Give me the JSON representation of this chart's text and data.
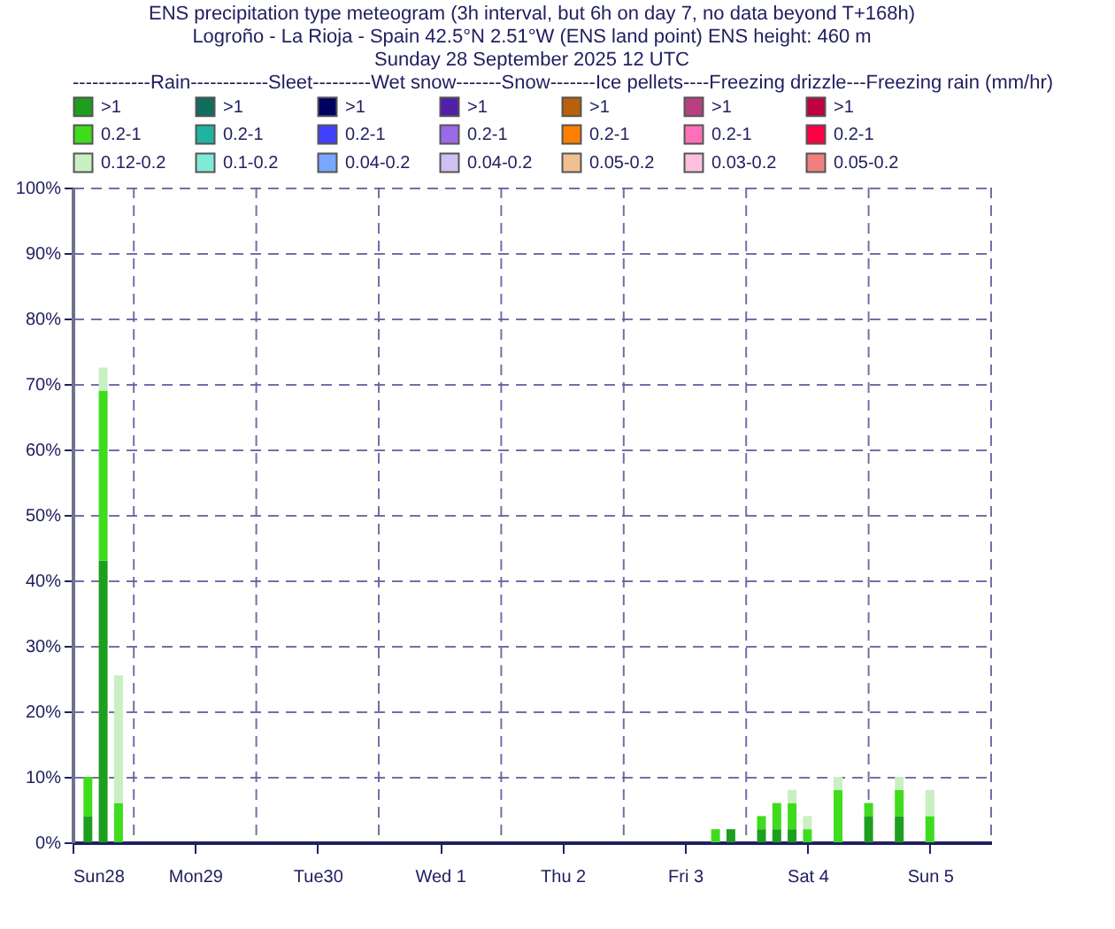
{
  "chart_data": {
    "type": "bar",
    "stacked": true,
    "title": "ENS precipitation type meteogram (3h interval, but 6h on day 7, no data beyond T+168h)",
    "subtitle": "Logroño - La Rioja - Spain 42.5°N 2.51°W (ENS land point) ENS height: 460 m\nSunday 28 September 2025 12 UTC",
    "legend_title": "------------Rain------------Sleet---------Wet snow-------Snow-------Ice pellets----Freezing drizzle---Freezing rain (mm/hr)",
    "legend": "top",
    "grid": true,
    "x": [
      "2025-09-28T15:00",
      "2025-09-28T18:00",
      "2025-09-28T21:00",
      "2025-10-03T18:00",
      "2025-10-03T21:00",
      "2025-10-04T03:00",
      "2025-10-04T06:00",
      "2025-10-04T09:00",
      "2025-10-04T12:00",
      "2025-10-04T18:00",
      "2025-10-05T00:00",
      "2025-10-05T06:00",
      "2025-10-05T12:00"
    ],
    "xlim": [
      "2025-09-28T12:00",
      "2025-10-06T00:00"
    ],
    "xticks": [
      {
        "value": "2025-09-28T12:00",
        "label": "Sun28"
      },
      {
        "value": "2025-09-29T00:00",
        "label": null
      },
      {
        "value": "2025-09-29T12:00",
        "label": "Mon29"
      },
      {
        "value": "2025-09-30T00:00",
        "label": null
      },
      {
        "value": "2025-09-30T12:00",
        "label": "Tue30"
      },
      {
        "value": "2025-10-01T00:00",
        "label": null
      },
      {
        "value": "2025-10-01T12:00",
        "label": "Wed 1"
      },
      {
        "value": "2025-10-02T00:00",
        "label": null
      },
      {
        "value": "2025-10-02T12:00",
        "label": "Thu 2"
      },
      {
        "value": "2025-10-03T00:00",
        "label": null
      },
      {
        "value": "2025-10-03T12:00",
        "label": "Fri 3"
      },
      {
        "value": "2025-10-04T00:00",
        "label": null
      },
      {
        "value": "2025-10-04T12:00",
        "label": "Sat 4"
      },
      {
        "value": "2025-10-05T00:00",
        "label": null
      },
      {
        "value": "2025-10-05T12:00",
        "label": "Sun 5"
      },
      {
        "value": "2025-10-06T00:00",
        "label": null
      }
    ],
    "ylim": [
      0,
      100
    ],
    "yticks": [
      {
        "value": 0,
        "label": "0%"
      },
      {
        "value": 10,
        "label": "10%"
      },
      {
        "value": 20,
        "label": "20%"
      },
      {
        "value": 30,
        "label": "30%"
      },
      {
        "value": 40,
        "label": "40%"
      },
      {
        "value": 50,
        "label": "50%"
      },
      {
        "value": 60,
        "label": "60%"
      },
      {
        "value": 70,
        "label": "70%"
      },
      {
        "value": 80,
        "label": "80%"
      },
      {
        "value": 90,
        "label": "90%"
      },
      {
        "value": 100,
        "label": "100%"
      }
    ],
    "series": [
      {
        "name": ">1",
        "color": "#1e9e1e",
        "values": [
          4,
          43,
          null,
          null,
          2,
          2,
          2,
          2,
          null,
          null,
          4,
          4,
          null
        ]
      },
      {
        "name": "0.2-1",
        "color": "#3fdc1e",
        "values": [
          6,
          26,
          6,
          2,
          null,
          2,
          4,
          4,
          2,
          8,
          2,
          4,
          4
        ]
      },
      {
        "name": "0.12-0.2",
        "color": "#c8f0c0",
        "values": [
          null,
          3.5,
          19.5,
          null,
          null,
          null,
          null,
          2,
          2,
          2,
          null,
          2,
          4
        ]
      },
      {
        "name": ">1",
        "color": "#0f6e5e",
        "values": [
          null,
          null,
          null,
          null,
          null,
          null,
          null,
          null,
          null,
          null,
          null,
          null,
          null
        ]
      },
      {
        "name": "0.2-1",
        "color": "#20b4a0",
        "values": [
          null,
          null,
          null,
          null,
          null,
          null,
          null,
          null,
          null,
          null,
          null,
          null,
          null
        ]
      },
      {
        "name": "0.1-0.2",
        "color": "#80ead8",
        "values": [
          null,
          null,
          null,
          null,
          null,
          null,
          null,
          null,
          null,
          null,
          null,
          null,
          null
        ]
      },
      {
        "name": ">1",
        "color": "#000060",
        "values": [
          null,
          null,
          null,
          null,
          null,
          null,
          null,
          null,
          null,
          null,
          null,
          null,
          null
        ]
      },
      {
        "name": "0.2-1",
        "color": "#4040ff",
        "values": [
          null,
          null,
          null,
          null,
          null,
          null,
          null,
          null,
          null,
          null,
          null,
          null,
          null
        ]
      },
      {
        "name": "0.04-0.2",
        "color": "#78a8ff",
        "values": [
          null,
          null,
          null,
          null,
          null,
          null,
          null,
          null,
          null,
          null,
          null,
          null,
          null
        ]
      },
      {
        "name": ">1",
        "color": "#5020a8",
        "values": [
          null,
          null,
          null,
          null,
          null,
          null,
          null,
          null,
          null,
          null,
          null,
          null,
          null
        ]
      },
      {
        "name": "0.2-1",
        "color": "#9a6ae8",
        "values": [
          null,
          null,
          null,
          null,
          null,
          null,
          null,
          null,
          null,
          null,
          null,
          null,
          null
        ]
      },
      {
        "name": "0.04-0.2",
        "color": "#d0c0f0",
        "values": [
          null,
          null,
          null,
          null,
          null,
          null,
          null,
          null,
          null,
          null,
          null,
          null,
          null
        ]
      },
      {
        "name": ">1",
        "color": "#b8600a",
        "values": [
          null,
          null,
          null,
          null,
          null,
          null,
          null,
          null,
          null,
          null,
          null,
          null,
          null
        ]
      },
      {
        "name": "0.2-1",
        "color": "#ff8000",
        "values": [
          null,
          null,
          null,
          null,
          null,
          null,
          null,
          null,
          null,
          null,
          null,
          null,
          null
        ]
      },
      {
        "name": "0.05-0.2",
        "color": "#f0c090",
        "values": [
          null,
          null,
          null,
          null,
          null,
          null,
          null,
          null,
          null,
          null,
          null,
          null,
          null
        ]
      },
      {
        "name": ">1",
        "color": "#b84080",
        "values": [
          null,
          null,
          null,
          null,
          null,
          null,
          null,
          null,
          null,
          null,
          null,
          null,
          null
        ]
      },
      {
        "name": "0.2-1",
        "color": "#ff70b8",
        "values": [
          null,
          null,
          null,
          null,
          null,
          null,
          null,
          null,
          null,
          null,
          null,
          null,
          null
        ]
      },
      {
        "name": "0.03-0.2",
        "color": "#ffc0e0",
        "values": [
          null,
          null,
          null,
          null,
          null,
          null,
          null,
          null,
          null,
          null,
          null,
          null,
          null
        ]
      },
      {
        "name": ">1",
        "color": "#c00040",
        "values": [
          null,
          null,
          null,
          null,
          null,
          null,
          null,
          null,
          null,
          null,
          null,
          null,
          null
        ]
      },
      {
        "name": "0.2-1",
        "color": "#ff0040",
        "values": [
          null,
          null,
          null,
          null,
          null,
          null,
          null,
          null,
          null,
          null,
          null,
          null,
          null
        ]
      },
      {
        "name": "0.05-0.2",
        "color": "#f08080",
        "values": [
          null,
          null,
          null,
          null,
          null,
          null,
          null,
          null,
          null,
          null,
          null,
          null,
          null
        ]
      }
    ]
  }
}
